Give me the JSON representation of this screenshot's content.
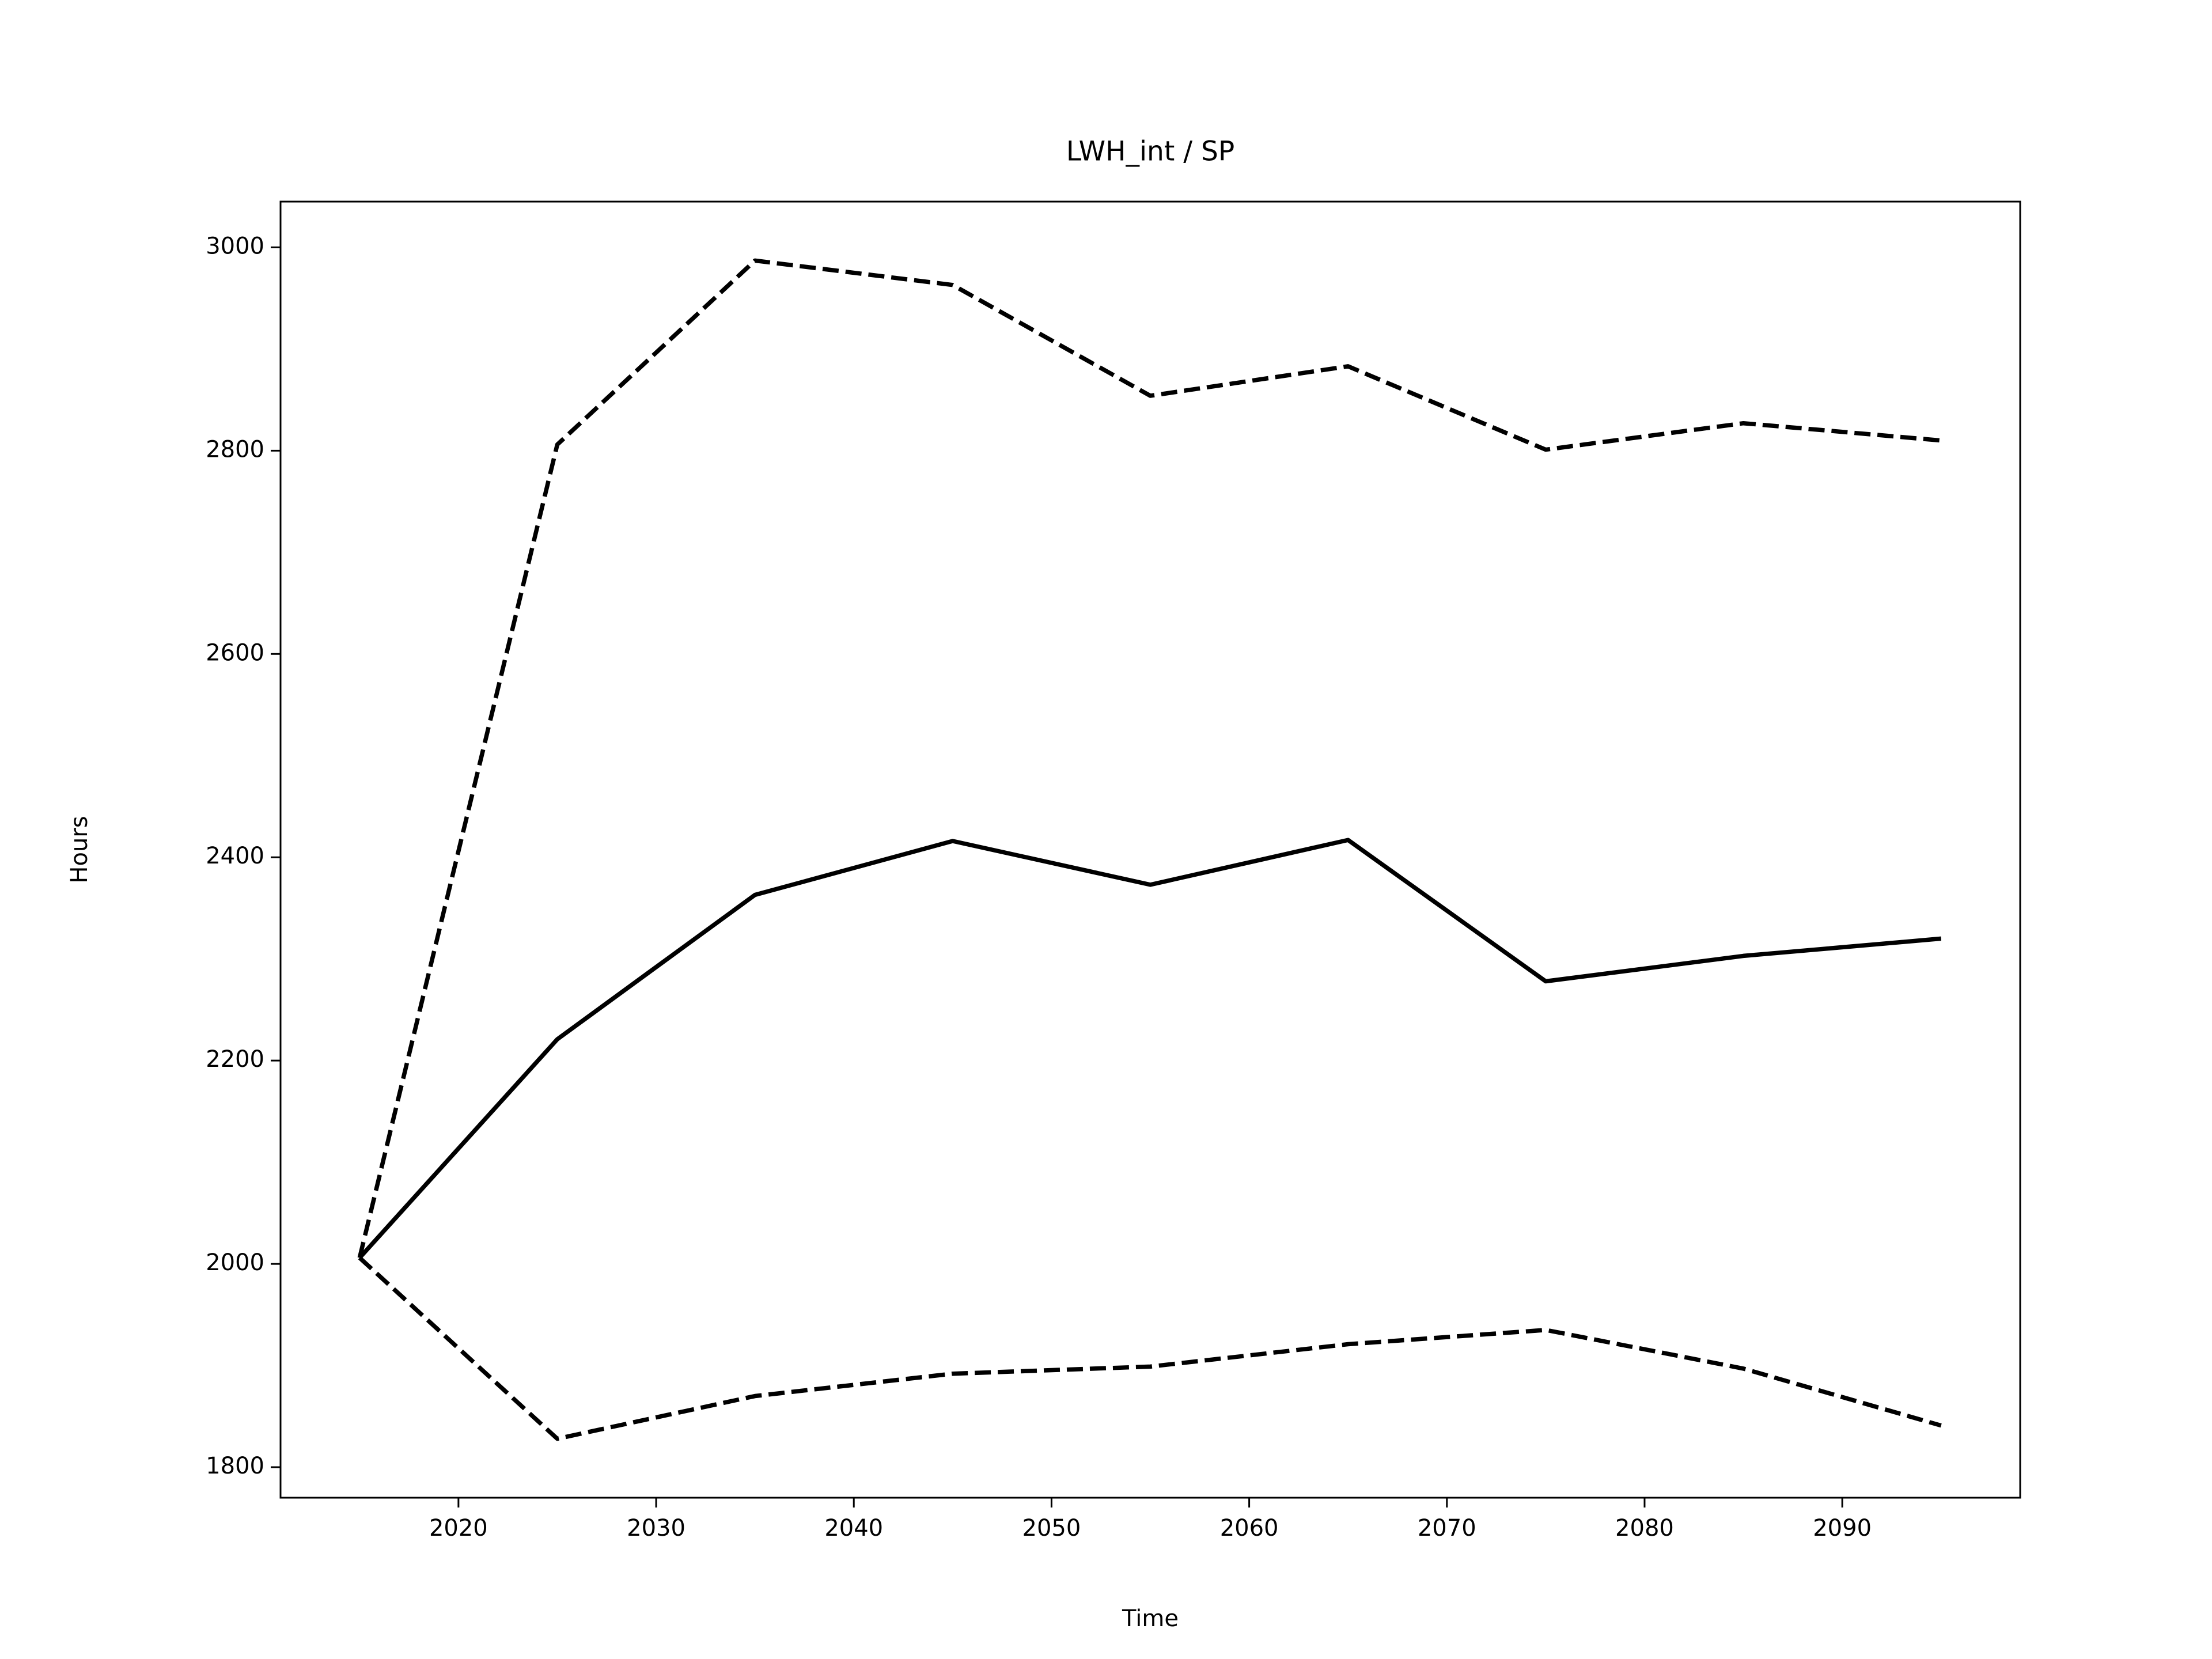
{
  "chart_data": {
    "type": "line",
    "title": "LWH_int / SP",
    "xlabel": "Time",
    "ylabel": "Hours",
    "x": [
      2015,
      2025,
      2035,
      2045,
      2055,
      2065,
      2075,
      2085,
      2095
    ],
    "series": [
      {
        "color": "#000000",
        "dash": false,
        "values": [
          2006,
          2221,
          2363,
          2416,
          2373,
          2417,
          2278,
          2303,
          2320
        ]
      },
      {
        "color": "#000000",
        "dash": true,
        "values": [
          2006,
          2806,
          2987,
          2963,
          2854,
          2883,
          2801,
          2827,
          2810
        ]
      },
      {
        "color": "#000000",
        "dash": true,
        "values": [
          2006,
          1828,
          1870,
          1892,
          1899,
          1921,
          1935,
          1897,
          1841
        ]
      }
    ],
    "xlim": [
      2011,
      2099
    ],
    "ylim": [
      1770,
      3045
    ],
    "xticks": [
      2020,
      2030,
      2040,
      2050,
      2060,
      2070,
      2080,
      2090
    ],
    "yticks": [
      1800,
      2000,
      2200,
      2400,
      2600,
      2800,
      3000
    ],
    "grid": false
  }
}
